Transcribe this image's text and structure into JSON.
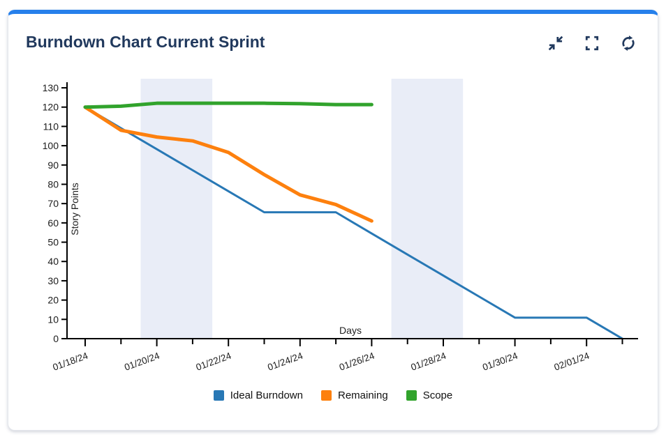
{
  "card": {
    "title": "Burndown Chart Current Sprint",
    "toolbar": {
      "collapse_label": "Collapse widget",
      "fullscreen_label": "Fullscreen",
      "refresh_label": "Refresh"
    }
  },
  "colors": {
    "accent": "#2680eb",
    "heading": "#21395d",
    "icon": "#21395d",
    "axis": "#000000",
    "tick_text": "#1c1c1c",
    "weekend_band": "#e9edf7"
  },
  "chart_data": {
    "type": "line",
    "title": "",
    "xlabel": "Days",
    "ylabel": "Story Points",
    "x_dates": [
      "01/18/24",
      "01/19/24",
      "01/20/24",
      "01/21/24",
      "01/22/24",
      "01/23/24",
      "01/24/24",
      "01/25/24",
      "01/26/24",
      "01/27/24",
      "01/28/24",
      "01/29/24",
      "01/30/24",
      "01/31/24",
      "02/01/24",
      "02/02/24"
    ],
    "x_tick_labels": [
      "01/18/24",
      "01/20/24",
      "01/22/24",
      "01/24/24",
      "01/26/24",
      "01/28/24",
      "01/30/24",
      "02/01/24"
    ],
    "x_label_every": 2,
    "yticks": [
      0,
      10,
      20,
      30,
      40,
      50,
      60,
      70,
      80,
      90,
      100,
      110,
      120,
      130
    ],
    "ylim": [
      0,
      132.8
    ],
    "grid": false,
    "legend_position": "bottom",
    "weekend_bands_days": [
      [
        1.55,
        3.55
      ],
      [
        8.55,
        10.55
      ]
    ],
    "series": [
      {
        "name": "Ideal Burndown",
        "color": "#2878b5",
        "line_width": 3,
        "values": [
          120,
          109.1,
          98.2,
          87.3,
          76.4,
          65.5,
          65.5,
          65.5,
          54.5,
          43.6,
          32.7,
          21.8,
          10.9,
          10.9,
          10.9,
          0
        ]
      },
      {
        "name": "Remaining",
        "color": "#fd800e",
        "line_width": 5,
        "values": [
          120,
          108,
          104.5,
          102.5,
          96.5,
          85,
          74.5,
          69.5,
          61
        ]
      },
      {
        "name": "Scope",
        "color": "#31a32c",
        "line_width": 5,
        "values": [
          120,
          120.5,
          122,
          122,
          122,
          122,
          121.8,
          121.3,
          121.3
        ]
      }
    ]
  }
}
